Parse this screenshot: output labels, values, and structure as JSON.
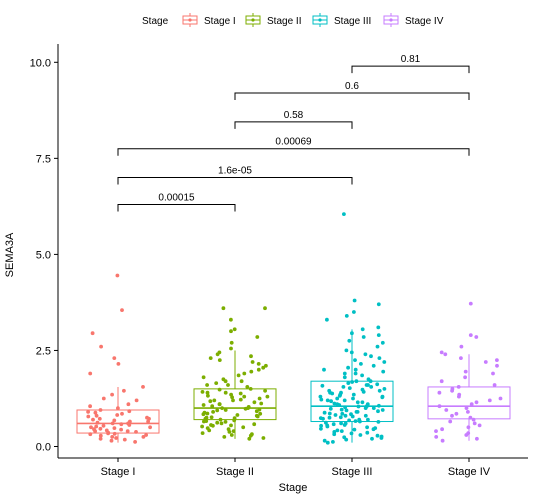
{
  "chart_data": {
    "type": "boxplot",
    "xlabel": "Stage",
    "ylabel": "SEMA3A",
    "ylim": [
      -0.15,
      10.4
    ],
    "yticks": [
      0.0,
      2.5,
      5.0,
      7.5,
      10.0
    ],
    "ytick_labels": [
      "0.0",
      "2.5",
      "5.0",
      "7.5",
      "10.0"
    ],
    "grid": false,
    "legend": {
      "title": "Stage",
      "position": "top",
      "entries": [
        "Stage I",
        "Stage II",
        "Stage III",
        "Stage IV"
      ]
    },
    "categories": [
      "Stage I",
      "Stage II",
      "Stage III",
      "Stage IV"
    ],
    "colors": [
      "#F8766D",
      "#7CAE00",
      "#00BFC4",
      "#C77CFF"
    ],
    "boxes": [
      {
        "name": "Stage I",
        "q1": 0.35,
        "median": 0.6,
        "q3": 0.95,
        "whisker_low": 0.1,
        "whisker_high": 1.55
      },
      {
        "name": "Stage II",
        "q1": 0.7,
        "median": 1.0,
        "q3": 1.5,
        "whisker_low": 0.2,
        "whisker_high": 2.5
      },
      {
        "name": "Stage III",
        "q1": 0.65,
        "median": 1.05,
        "q3": 1.7,
        "whisker_low": 0.1,
        "whisker_high": 3.05
      },
      {
        "name": "Stage IV",
        "q1": 0.72,
        "median": 1.05,
        "q3": 1.55,
        "whisker_low": 0.15,
        "whisker_high": 2.4
      }
    ],
    "points": [
      [
        4.45,
        3.55,
        2.95,
        2.6,
        2.3,
        2.15,
        1.9,
        1.55,
        1.45,
        1.35,
        1.25,
        1.2,
        1.1,
        1.05,
        1.0,
        0.95,
        0.92,
        0.88,
        0.85,
        0.82,
        0.8,
        0.78,
        0.75,
        0.72,
        0.7,
        0.68,
        0.65,
        0.62,
        0.6,
        0.58,
        0.56,
        0.54,
        0.52,
        0.5,
        0.48,
        0.46,
        0.44,
        0.42,
        0.4,
        0.38,
        0.36,
        0.34,
        0.32,
        0.3,
        0.28,
        0.25,
        0.22,
        0.2,
        0.18,
        0.15,
        0.12,
        0.6,
        0.45,
        0.72,
        0.33,
        0.5,
        0.9,
        0.25,
        0.65,
        0.4
      ],
      [
        3.6,
        3.6,
        3.3,
        3.05,
        3.0,
        2.85,
        2.7,
        2.55,
        2.45,
        2.4,
        2.35,
        2.3,
        2.25,
        2.2,
        2.15,
        2.1,
        2.05,
        2.0,
        1.95,
        1.9,
        1.85,
        1.8,
        1.75,
        1.7,
        1.65,
        1.6,
        1.55,
        1.5,
        1.48,
        1.45,
        1.42,
        1.4,
        1.38,
        1.35,
        1.32,
        1.3,
        1.28,
        1.25,
        1.22,
        1.2,
        1.18,
        1.15,
        1.12,
        1.1,
        1.08,
        1.05,
        1.03,
        1.0,
        0.98,
        0.96,
        0.94,
        0.92,
        0.9,
        0.88,
        0.86,
        0.84,
        0.82,
        0.8,
        0.78,
        0.76,
        0.74,
        0.72,
        0.7,
        0.68,
        0.66,
        0.64,
        0.62,
        0.6,
        0.58,
        0.56,
        0.54,
        0.52,
        0.5,
        0.48,
        0.45,
        0.42,
        0.4,
        0.38,
        0.35,
        0.32,
        0.3,
        0.28,
        0.25,
        0.22,
        0.2,
        1.3,
        1.1,
        0.95,
        1.6,
        0.85,
        1.4,
        0.75,
        1.2,
        1.0,
        0.65,
        1.7,
        0.55
      ],
      [
        6.05,
        3.8,
        3.7,
        3.5,
        3.4,
        3.3,
        3.1,
        3.05,
        2.95,
        2.9,
        2.85,
        2.75,
        2.7,
        2.6,
        2.5,
        2.45,
        2.4,
        2.35,
        2.3,
        2.25,
        2.2,
        2.15,
        2.1,
        2.05,
        2.0,
        1.95,
        1.9,
        1.85,
        1.8,
        1.75,
        1.7,
        1.68,
        1.65,
        1.62,
        1.6,
        1.58,
        1.55,
        1.52,
        1.5,
        1.48,
        1.45,
        1.42,
        1.4,
        1.38,
        1.35,
        1.32,
        1.3,
        1.28,
        1.25,
        1.22,
        1.2,
        1.18,
        1.15,
        1.12,
        1.1,
        1.08,
        1.06,
        1.04,
        1.02,
        1.0,
        0.98,
        0.96,
        0.94,
        0.92,
        0.9,
        0.88,
        0.86,
        0.84,
        0.82,
        0.8,
        0.78,
        0.76,
        0.74,
        0.72,
        0.7,
        0.68,
        0.66,
        0.64,
        0.62,
        0.6,
        0.58,
        0.56,
        0.54,
        0.52,
        0.5,
        0.48,
        0.46,
        0.44,
        0.42,
        0.4,
        0.38,
        0.36,
        0.34,
        0.32,
        0.3,
        0.28,
        0.26,
        0.24,
        0.22,
        0.2,
        0.18,
        0.15,
        0.12,
        0.1,
        1.05,
        1.15,
        0.95,
        1.25,
        0.85,
        1.35,
        0.75,
        1.45,
        0.65,
        1.55,
        1.0,
        1.1,
        0.9,
        1.2,
        0.8,
        1.3,
        0.7,
        1.4,
        0.6,
        2.0,
        1.7,
        0.55,
        1.9,
        0.45,
        1.6
      ],
      [
        3.72,
        2.9,
        2.85,
        2.6,
        2.45,
        2.4,
        2.3,
        2.25,
        2.2,
        2.1,
        1.95,
        1.9,
        1.8,
        1.7,
        1.6,
        1.55,
        1.5,
        1.45,
        1.4,
        1.35,
        1.3,
        1.25,
        1.2,
        1.15,
        1.1,
        1.05,
        1.0,
        0.95,
        0.9,
        0.85,
        0.8,
        0.75,
        0.7,
        0.65,
        0.6,
        0.55,
        0.5,
        0.45,
        0.4,
        0.35,
        0.3,
        0.25,
        0.2,
        0.15
      ]
    ],
    "comparisons": [
      {
        "groups": [
          "Stage I",
          "Stage II"
        ],
        "label": "0.00015",
        "y": 6.3
      },
      {
        "groups": [
          "Stage I",
          "Stage III"
        ],
        "label": "1.6e-05",
        "y": 7.0
      },
      {
        "groups": [
          "Stage I",
          "Stage IV"
        ],
        "label": "0.00069",
        "y": 7.75
      },
      {
        "groups": [
          "Stage II",
          "Stage III"
        ],
        "label": "0.58",
        "y": 8.45
      },
      {
        "groups": [
          "Stage II",
          "Stage IV"
        ],
        "label": "0.6",
        "y": 9.2
      },
      {
        "groups": [
          "Stage III",
          "Stage IV"
        ],
        "label": "0.81",
        "y": 9.9
      }
    ]
  }
}
